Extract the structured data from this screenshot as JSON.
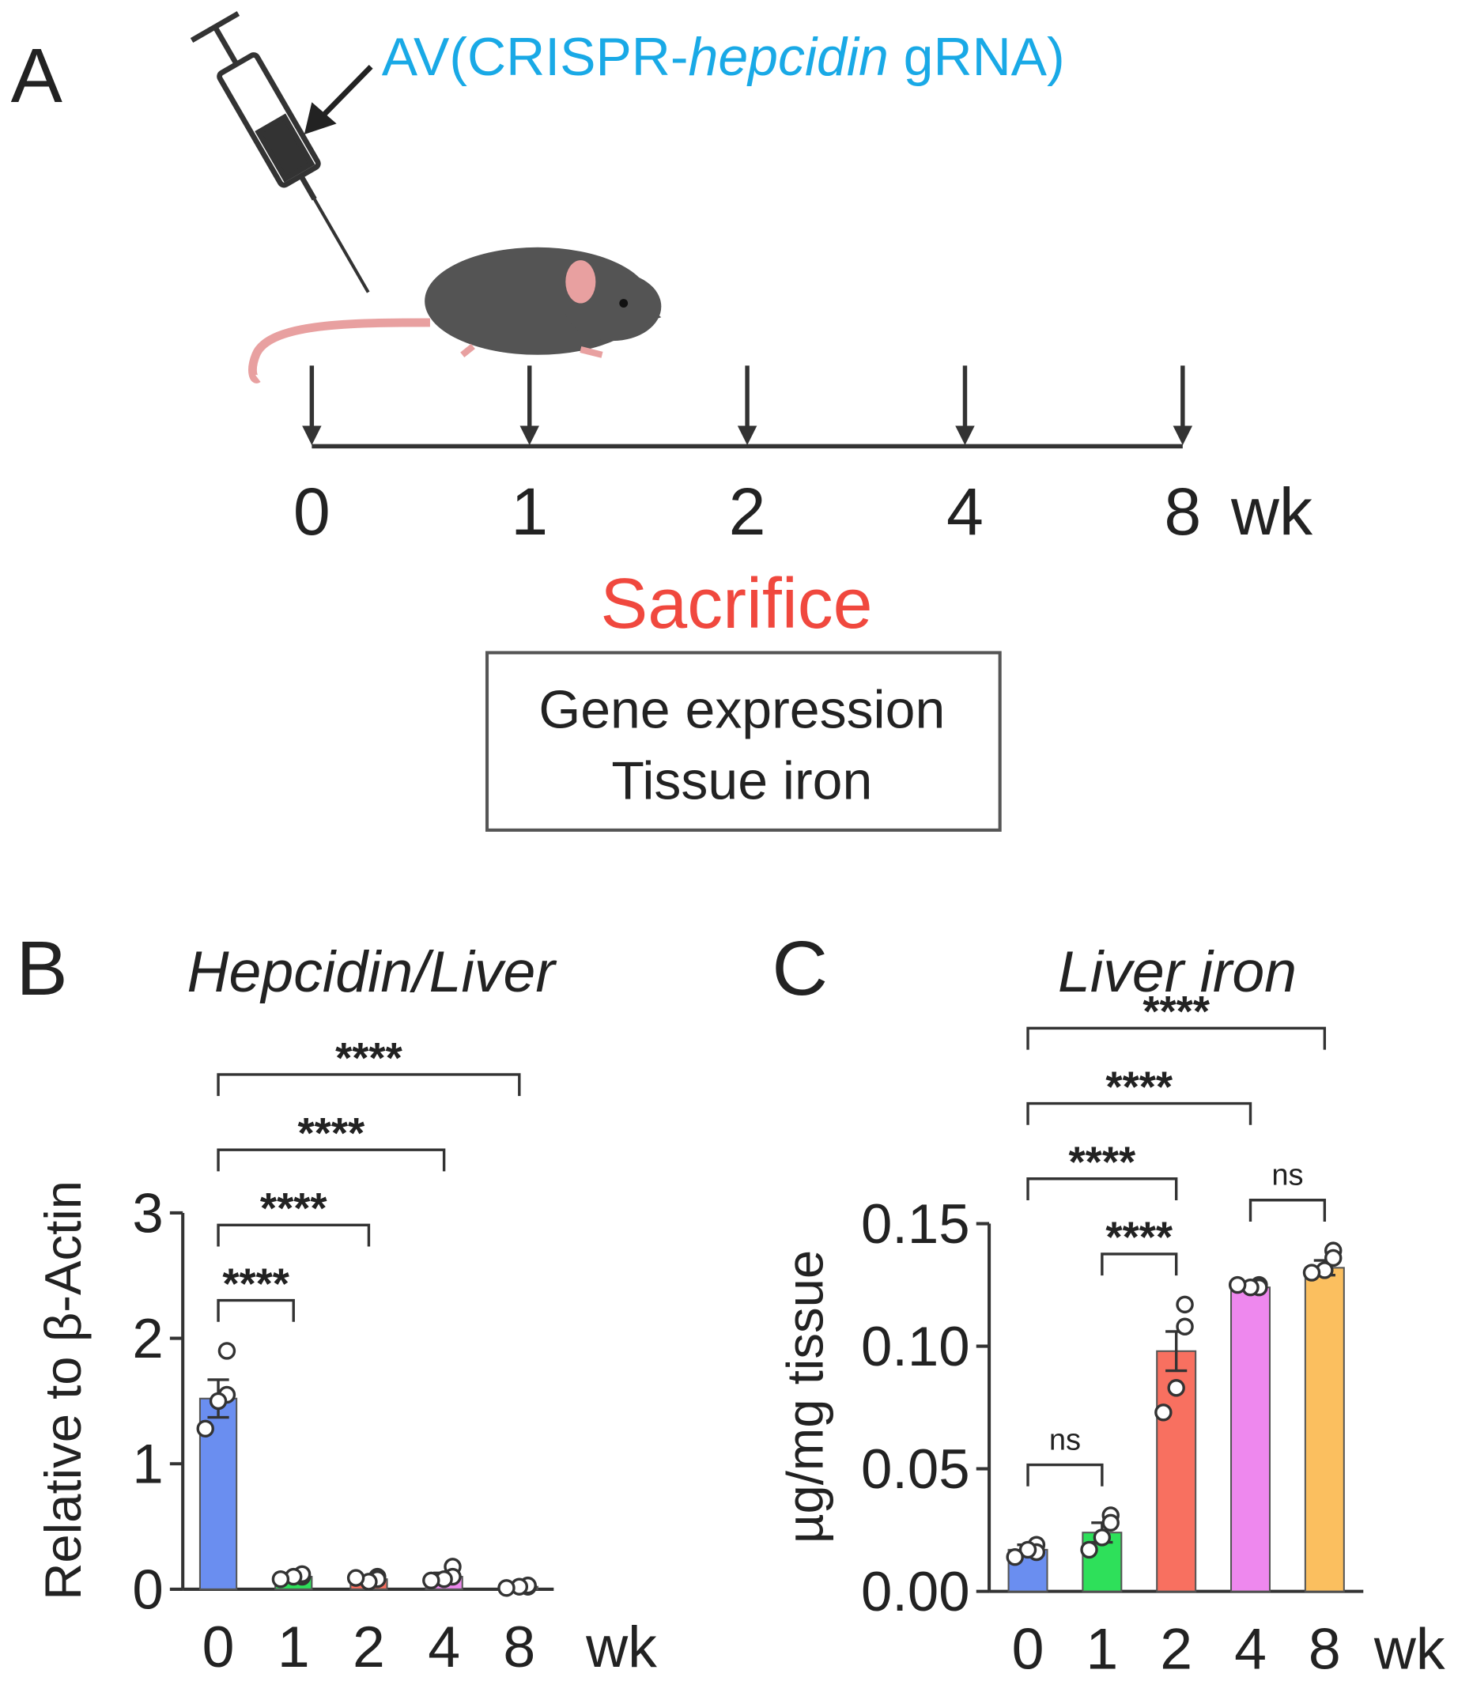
{
  "panel_a": {
    "panel_label": "A",
    "injection": [
      "AV(CRISPR-",
      "hepcidin",
      " gRNA)"
    ],
    "timeline": {
      "points": [
        "0",
        "1",
        "2",
        "4",
        "8"
      ],
      "unit": "wk"
    },
    "sacrifice": "Sacrifice",
    "readouts": [
      "Gene expression",
      "Tissue iron"
    ]
  },
  "chart_data": [
    {
      "type": "bar",
      "panel_label": "B",
      "title": "Hepcidin/Liver",
      "ylabel": "Relative to β-Actin",
      "xlabel": "wk",
      "categories": [
        "0",
        "1",
        "2",
        "4",
        "8"
      ],
      "values": [
        1.52,
        0.1,
        0.08,
        0.1,
        0.02
      ],
      "errors": [
        0.15,
        0.01,
        0.01,
        0.03,
        0.005
      ],
      "points": [
        [
          1.9,
          1.55,
          1.5,
          1.28
        ],
        [
          0.1,
          0.12,
          0.1,
          0.08
        ],
        [
          0.1,
          0.08,
          0.06,
          0.09
        ],
        [
          0.18,
          0.1,
          0.08,
          0.07
        ],
        [
          0.02,
          0.03,
          0.02,
          0.01
        ]
      ],
      "colors": [
        "#6a8ef0",
        "#2ee05a",
        "#f87060",
        "#ee88ee",
        "#fbbf5f"
      ],
      "ylim": [
        0,
        3
      ],
      "yticks": [
        0,
        1,
        2,
        3
      ],
      "comparisons": [
        {
          "label": "****",
          "groups": [
            "0",
            "1"
          ]
        },
        {
          "label": "****",
          "groups": [
            "0",
            "2"
          ]
        },
        {
          "label": "****",
          "groups": [
            "0",
            "4"
          ]
        },
        {
          "label": "****",
          "groups": [
            "0",
            "8"
          ]
        }
      ]
    },
    {
      "type": "bar",
      "panel_label": "C",
      "title": "Liver iron",
      "ylabel": "µg/mg tissue",
      "xlabel": "wk",
      "categories": [
        "0",
        "1",
        "2",
        "4",
        "8"
      ],
      "values": [
        0.017,
        0.024,
        0.098,
        0.124,
        0.132
      ],
      "errors": [
        0.002,
        0.004,
        0.008,
        0.001,
        0.003
      ],
      "points": [
        [
          0.019,
          0.016,
          0.017,
          0.014
        ],
        [
          0.031,
          0.028,
          0.022,
          0.017
        ],
        [
          0.117,
          0.108,
          0.083,
          0.073
        ],
        [
          0.125,
          0.124,
          0.124,
          0.125
        ],
        [
          0.139,
          0.136,
          0.131,
          0.13
        ]
      ],
      "colors": [
        "#6a8ef0",
        "#2ee05a",
        "#f87060",
        "#ee88ee",
        "#fbbf5f"
      ],
      "ylim": [
        0,
        0.15
      ],
      "yticks": [
        {
          "value": 0,
          "label": "0.00"
        },
        {
          "value": 0.05,
          "label": "0.05"
        },
        {
          "value": 0.1,
          "label": "0.10"
        },
        {
          "value": 0.15,
          "label": "0.15"
        }
      ],
      "comparisons": [
        {
          "label": "ns",
          "groups": [
            "0",
            "1"
          ]
        },
        {
          "label": "****",
          "groups": [
            "1",
            "2"
          ]
        },
        {
          "label": "ns",
          "groups": [
            "4",
            "8"
          ]
        },
        {
          "label": "****",
          "groups": [
            "0",
            "2"
          ]
        },
        {
          "label": "****",
          "groups": [
            "0",
            "4"
          ]
        },
        {
          "label": "****",
          "groups": [
            "0",
            "8"
          ]
        }
      ]
    }
  ]
}
